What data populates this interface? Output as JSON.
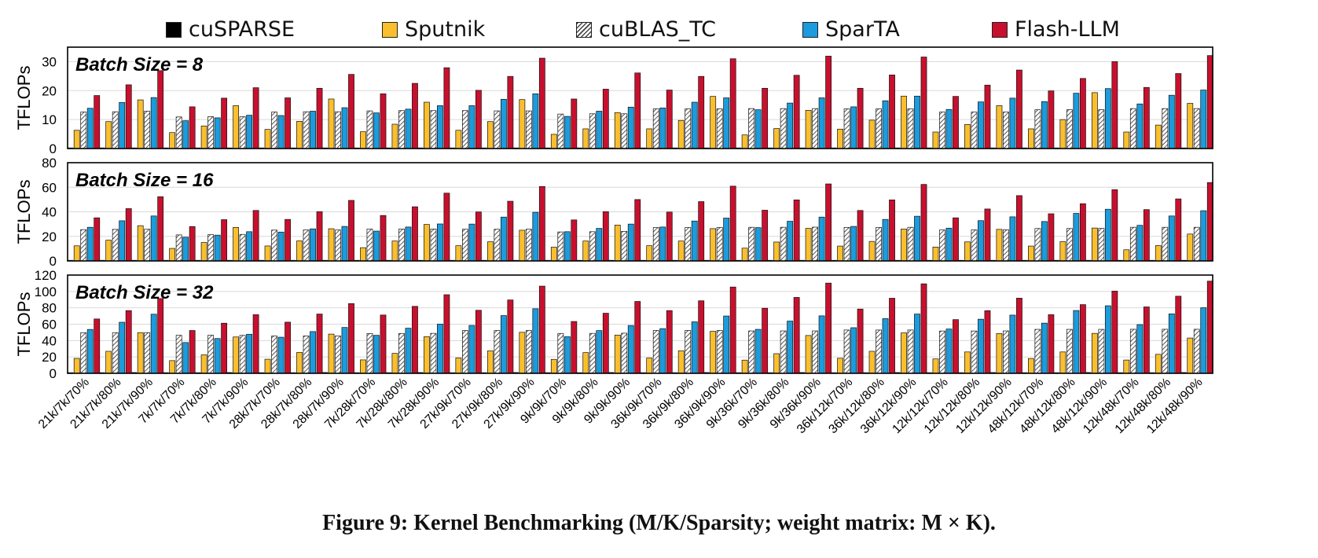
{
  "caption": "Figure 9: Kernel Benchmarking (M/K/Sparsity; weight matrix: M × K).",
  "legend": [
    {
      "name": "cuSPARSE",
      "color": "#000000",
      "pattern": "solid"
    },
    {
      "name": "Sputnik",
      "color": "#FBBF2E",
      "pattern": "solid"
    },
    {
      "name": "cuBLAS_TC",
      "color": "#FFFFFF",
      "pattern": "hatch"
    },
    {
      "name": "SparTA",
      "color": "#1C9BDE",
      "pattern": "solid"
    },
    {
      "name": "Flash-LLM",
      "color": "#C8102E",
      "pattern": "solid"
    }
  ],
  "chart_data": [
    {
      "type": "bar",
      "title": "Batch Size = 8",
      "ylabel": "TFLOPs",
      "ylim": [
        0,
        35
      ],
      "yticks": [
        0,
        10,
        20,
        30
      ],
      "categories": [
        "21k/7k/70%",
        "21k/7k/80%",
        "21k/7k/90%",
        "7k/7k/70%",
        "7k/7k/80%",
        "7k/7k/90%",
        "28k/7k/70%",
        "28k/7k/80%",
        "28k/7k/90%",
        "7k/28k/70%",
        "7k/28k/80%",
        "7k/28k/90%",
        "27k/9k/70%",
        "27k/9k/80%",
        "27k/9k/90%",
        "9k/9k/70%",
        "9k/9k/80%",
        "9k/9k/90%",
        "36k/9k/70%",
        "36k/9k/80%",
        "36k/9k/90%",
        "9k/36k/70%",
        "9k/36k/80%",
        "9k/36k/90%",
        "36k/12k/70%",
        "36k/12k/80%",
        "36k/12k/90%",
        "12k/12k/70%",
        "12k/12k/80%",
        "12k/12k/90%",
        "48k/12k/70%",
        "48k/12k/80%",
        "48k/12k/90%",
        "12k/48k/70%",
        "12k/48k/80%",
        "12k/48k/90%"
      ],
      "series": [
        {
          "name": "cuSPARSE",
          "values": [
            0.2,
            0.2,
            0.2,
            0.2,
            0.2,
            0.2,
            0.2,
            0.2,
            0.2,
            0.2,
            0.2,
            0.2,
            0.2,
            0.2,
            0.2,
            0.2,
            0.2,
            0.2,
            0.2,
            0.2,
            0.2,
            0.2,
            0.2,
            0.2,
            0.2,
            0.2,
            0.2,
            0.2,
            0.2,
            0.2,
            0.2,
            0.2,
            0.2,
            0.2,
            0.2,
            0.2
          ]
        },
        {
          "name": "Sputnik",
          "values": [
            6.3,
            9.3,
            16.8,
            5.5,
            7.8,
            14.8,
            6.6,
            9.4,
            17.1,
            5.8,
            8.4,
            16.0,
            6.3,
            9.3,
            16.9,
            4.9,
            6.8,
            12.4,
            6.8,
            9.7,
            18.0,
            4.7,
            6.9,
            13.2,
            6.7,
            9.8,
            18.1,
            5.7,
            8.3,
            14.8,
            6.8,
            10.0,
            19.3,
            5.7,
            8.1,
            15.6
          ]
        },
        {
          "name": "cuBLAS_TC",
          "values": [
            12.6,
            12.7,
            12.9,
            10.9,
            11.0,
            11.0,
            12.6,
            12.7,
            12.7,
            13.0,
            13.1,
            13.1,
            13.1,
            13.0,
            13.0,
            11.9,
            12.0,
            12.0,
            13.7,
            13.7,
            13.7,
            13.8,
            13.8,
            13.8,
            13.7,
            13.7,
            13.7,
            12.6,
            12.6,
            12.6,
            13.4,
            13.4,
            13.4,
            13.8,
            13.8,
            13.8
          ]
        },
        {
          "name": "SparTA",
          "values": [
            13.9,
            15.9,
            17.6,
            9.6,
            10.6,
            11.5,
            11.4,
            12.9,
            14.1,
            12.3,
            13.6,
            14.8,
            14.8,
            17.0,
            18.9,
            11.1,
            12.9,
            14.3,
            14.0,
            16.0,
            17.5,
            13.4,
            15.7,
            17.5,
            14.4,
            16.5,
            18.1,
            13.5,
            16.1,
            17.4,
            16.2,
            19.1,
            20.7,
            15.4,
            18.4,
            20.2
          ]
        },
        {
          "name": "Flash-LLM",
          "values": [
            18.3,
            22.0,
            26.9,
            14.4,
            17.4,
            21.0,
            17.5,
            20.8,
            25.6,
            18.9,
            22.5,
            27.9,
            20.1,
            24.9,
            31.2,
            17.1,
            20.5,
            26.1,
            20.2,
            24.9,
            31.0,
            20.8,
            25.3,
            31.9,
            20.8,
            25.4,
            31.6,
            18.0,
            21.9,
            27.1,
            19.9,
            24.2,
            30.0,
            21.1,
            25.9,
            32.1
          ]
        }
      ]
    },
    {
      "type": "bar",
      "title": "Batch Size = 16",
      "ylabel": "TFLOPs",
      "ylim": [
        0,
        80
      ],
      "yticks": [
        0,
        20,
        40,
        60,
        80
      ],
      "categories": [
        "21k/7k/70%",
        "21k/7k/80%",
        "21k/7k/90%",
        "7k/7k/70%",
        "7k/7k/80%",
        "7k/7k/90%",
        "28k/7k/70%",
        "28k/7k/80%",
        "28k/7k/90%",
        "7k/28k/70%",
        "7k/28k/80%",
        "7k/28k/90%",
        "27k/9k/70%",
        "27k/9k/80%",
        "27k/9k/90%",
        "9k/9k/70%",
        "9k/9k/80%",
        "9k/9k/90%",
        "36k/9k/70%",
        "36k/9k/80%",
        "36k/9k/90%",
        "9k/36k/70%",
        "9k/36k/80%",
        "9k/36k/90%",
        "36k/12k/70%",
        "36k/12k/80%",
        "36k/12k/90%",
        "12k/12k/70%",
        "12k/12k/80%",
        "12k/12k/90%",
        "48k/12k/70%",
        "48k/12k/80%",
        "48k/12k/90%",
        "12k/48k/70%",
        "12k/48k/80%",
        "12k/48k/90%"
      ],
      "series": [
        {
          "name": "cuSPARSE",
          "values": [
            0.4,
            0.4,
            0.5,
            0.4,
            0.4,
            0.5,
            0.4,
            0.4,
            0.5,
            0.4,
            0.4,
            0.5,
            0.4,
            0.4,
            0.5,
            0.4,
            0.4,
            0.5,
            0.4,
            0.4,
            0.5,
            0.4,
            0.4,
            0.5,
            0.4,
            0.4,
            0.5,
            0.4,
            0.4,
            0.5,
            0.4,
            0.4,
            0.5,
            0.4,
            0.4,
            0.5
          ]
        },
        {
          "name": "Sputnik",
          "values": [
            12.3,
            16.9,
            28.7,
            10.2,
            15.0,
            27.3,
            12.2,
            16.3,
            26.2,
            10.8,
            16.2,
            29.7,
            12.4,
            15.6,
            25.0,
            11.2,
            16.2,
            29.2,
            12.4,
            16.2,
            26.3,
            10.4,
            15.4,
            26.5,
            12.1,
            15.9,
            26.0,
            11.3,
            15.5,
            25.7,
            12.1,
            15.7,
            26.8,
            9.1,
            12.5,
            21.9
          ]
        },
        {
          "name": "cuBLAS_TC",
          "values": [
            25.5,
            25.7,
            25.8,
            21.2,
            21.4,
            21.6,
            25.1,
            25.2,
            25.2,
            25.9,
            26.0,
            26.0,
            25.8,
            25.8,
            25.8,
            23.6,
            23.8,
            24.1,
            27.2,
            27.2,
            27.3,
            27.4,
            27.4,
            27.5,
            27.3,
            27.3,
            27.4,
            25.2,
            25.3,
            25.4,
            26.4,
            26.4,
            26.5,
            27.4,
            27.4,
            27.4
          ]
        },
        {
          "name": "SparTA",
          "values": [
            27.4,
            32.7,
            36.6,
            19.3,
            21.0,
            23.8,
            23.5,
            26.1,
            28.1,
            24.3,
            27.6,
            30.1,
            30.0,
            35.7,
            39.6,
            23.8,
            26.5,
            30.0,
            27.6,
            32.5,
            34.9,
            27.1,
            32.3,
            35.7,
            28.1,
            33.8,
            36.4,
            26.7,
            32.8,
            35.9,
            32.1,
            38.7,
            42.1,
            29.0,
            36.6,
            40.9
          ]
        },
        {
          "name": "Flash-LLM",
          "values": [
            35.1,
            42.6,
            52.3,
            28.0,
            33.6,
            41.1,
            33.8,
            40.1,
            49.3,
            37.0,
            44.1,
            55.2,
            39.9,
            48.6,
            60.6,
            33.4,
            40.1,
            50.0,
            39.8,
            48.3,
            60.9,
            41.3,
            49.7,
            62.7,
            41.1,
            49.7,
            62.3,
            35.1,
            42.3,
            53.2,
            38.4,
            46.6,
            58.0,
            41.8,
            50.5,
            63.8
          ]
        }
      ]
    },
    {
      "type": "bar",
      "title": "Batch Size = 32",
      "ylabel": "TFLOPs",
      "ylim": [
        0,
        120
      ],
      "yticks": [
        0,
        20,
        40,
        60,
        80,
        100,
        120
      ],
      "categories": [
        "21k/7k/70%",
        "21k/7k/80%",
        "21k/7k/90%",
        "7k/7k/70%",
        "7k/7k/80%",
        "7k/7k/90%",
        "28k/7k/70%",
        "28k/7k/80%",
        "28k/7k/90%",
        "7k/28k/70%",
        "7k/28k/80%",
        "7k/28k/90%",
        "27k/9k/70%",
        "27k/9k/80%",
        "27k/9k/90%",
        "9k/9k/70%",
        "9k/9k/80%",
        "9k/9k/90%",
        "36k/9k/70%",
        "36k/9k/80%",
        "36k/9k/90%",
        "9k/36k/70%",
        "9k/36k/80%",
        "9k/36k/90%",
        "36k/12k/70%",
        "36k/12k/80%",
        "36k/12k/90%",
        "12k/12k/70%",
        "12k/12k/80%",
        "12k/12k/90%",
        "48k/12k/70%",
        "48k/12k/80%",
        "48k/12k/90%",
        "12k/48k/70%",
        "12k/48k/80%",
        "12k/48k/90%"
      ],
      "series": [
        {
          "name": "cuSPARSE",
          "values": [
            0.8,
            0.8,
            1.0,
            0.8,
            0.8,
            1.0,
            0.8,
            0.8,
            1.0,
            0.8,
            0.8,
            1.0,
            0.8,
            0.8,
            1.0,
            0.8,
            0.8,
            1.0,
            0.8,
            0.8,
            1.0,
            0.8,
            0.8,
            1.0,
            0.8,
            0.8,
            1.0,
            0.8,
            0.8,
            1.0,
            0.8,
            0.8,
            1.0,
            0.8,
            0.8,
            1.0
          ]
        },
        {
          "name": "Sputnik",
          "values": [
            18.2,
            26.9,
            49.7,
            15.5,
            22.6,
            44.4,
            17.2,
            25.5,
            47.9,
            16.4,
            24.4,
            44.7,
            18.8,
            27.4,
            50.1,
            17.0,
            25.3,
            46.7,
            18.7,
            27.6,
            51.3,
            16.1,
            24.0,
            46.2,
            18.4,
            26.9,
            49.4,
            17.6,
            26.1,
            48.6,
            18.1,
            26.1,
            48.8,
            16.2,
            23.2,
            43.1
          ]
        },
        {
          "name": "cuBLAS_TC",
          "values": [
            49.6,
            49.7,
            49.7,
            46.4,
            46.5,
            46.3,
            45.6,
            45.7,
            45.6,
            48.6,
            48.7,
            48.8,
            52.3,
            52.3,
            52.4,
            48.7,
            48.8,
            49.0,
            52.4,
            52.4,
            52.4,
            51.8,
            51.8,
            51.8,
            52.9,
            52.9,
            52.9,
            51.7,
            51.7,
            51.8,
            53.7,
            53.7,
            53.7,
            53.8,
            53.8,
            53.8
          ]
        },
        {
          "name": "SparTA",
          "values": [
            53.6,
            62.4,
            72.2,
            37.6,
            42.5,
            47.7,
            44.1,
            51.0,
            56.0,
            46.4,
            55.1,
            60.1,
            58.5,
            70.5,
            78.9,
            44.7,
            52.2,
            58.4,
            54.6,
            62.9,
            70.0,
            53.7,
            63.8,
            70.2,
            55.7,
            66.8,
            72.4,
            54.1,
            66.1,
            71.1,
            61.3,
            76.7,
            82.5,
            59.5,
            72.6,
            80.1
          ]
        },
        {
          "name": "Flash-LLM",
          "values": [
            66.4,
            76.6,
            91.3,
            52.3,
            61.2,
            71.6,
            62.5,
            72.4,
            85.2,
            71.2,
            81.8,
            96.0,
            77.0,
            89.6,
            106.5,
            63.3,
            73.4,
            87.8,
            76.6,
            88.6,
            105.4,
            79.5,
            92.7,
            110.2,
            78.5,
            91.7,
            109.3,
            65.6,
            76.5,
            91.8,
            71.6,
            83.9,
            100.4,
            81.1,
            94.2,
            112.6
          ]
        }
      ]
    }
  ]
}
